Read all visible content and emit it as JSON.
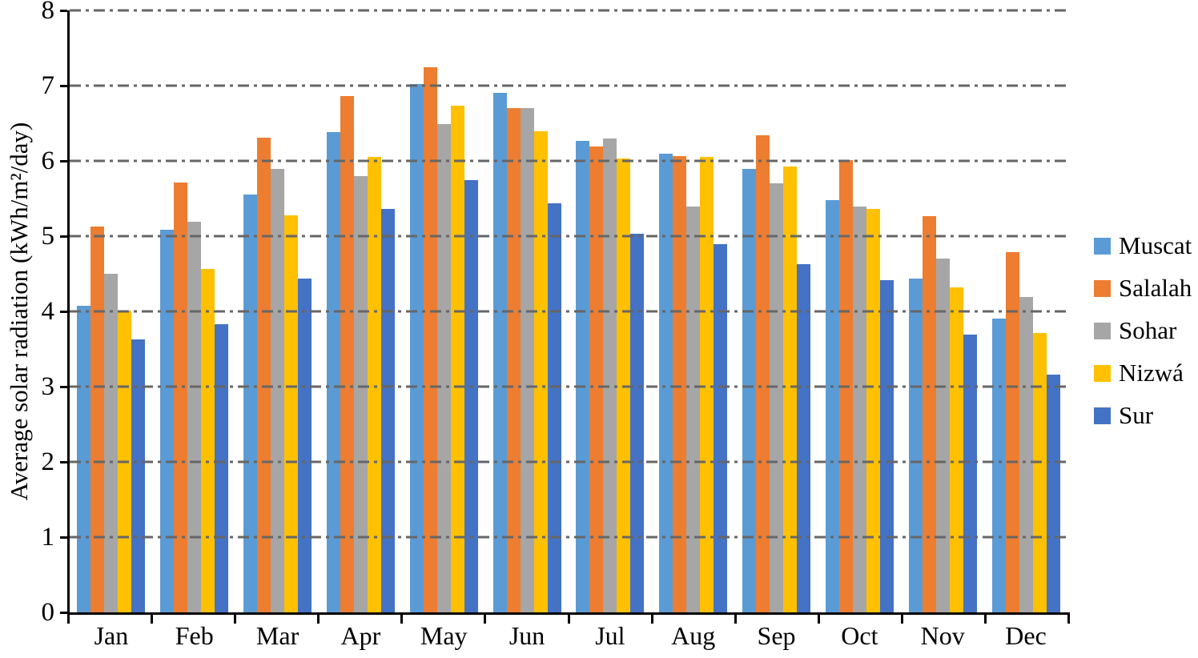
{
  "chart_data": {
    "type": "bar",
    "title": "",
    "xlabel": "",
    "ylabel": "Average solar radiation (kWh/m²/day)",
    "ylim": [
      0,
      8
    ],
    "yticks": [
      0,
      1,
      2,
      3,
      4,
      5,
      6,
      7,
      8
    ],
    "grid": "horizontal dash-dot",
    "legend_position": "right",
    "categories": [
      "Jan",
      "Feb",
      "Mar",
      "Apr",
      "May",
      "Jun",
      "Jul",
      "Aug",
      "Sep",
      "Oct",
      "Nov",
      "Dec"
    ],
    "series": [
      {
        "name": "Muscat",
        "color": "#5B9BD5",
        "values": [
          4.07,
          5.09,
          5.55,
          6.38,
          7.02,
          6.9,
          6.27,
          6.1,
          5.89,
          5.48,
          4.44,
          3.9
        ]
      },
      {
        "name": "Salalah",
        "color": "#ED7D31",
        "values": [
          5.13,
          5.71,
          6.31,
          6.86,
          7.25,
          6.7,
          6.19,
          6.06,
          6.34,
          6.01,
          5.27,
          4.79
        ]
      },
      {
        "name": "Sohar",
        "color": "#A6A6A6",
        "values": [
          4.5,
          5.19,
          5.89,
          5.8,
          6.49,
          6.7,
          6.3,
          5.39,
          5.7,
          5.39,
          4.7,
          4.19
        ]
      },
      {
        "name": "Nizwá",
        "color": "#FFC000",
        "values": [
          4.01,
          4.56,
          5.28,
          6.05,
          6.73,
          6.39,
          6.03,
          6.05,
          5.93,
          5.36,
          4.32,
          3.71
        ]
      },
      {
        "name": "Sur",
        "color": "#4472C4",
        "values": [
          3.63,
          3.83,
          4.44,
          5.36,
          5.74,
          5.44,
          5.03,
          4.89,
          4.63,
          4.42,
          3.69,
          3.16
        ]
      }
    ],
    "colors": {
      "axis": "#000000",
      "gridline": "#666666",
      "background": "#FFFFFF"
    }
  }
}
